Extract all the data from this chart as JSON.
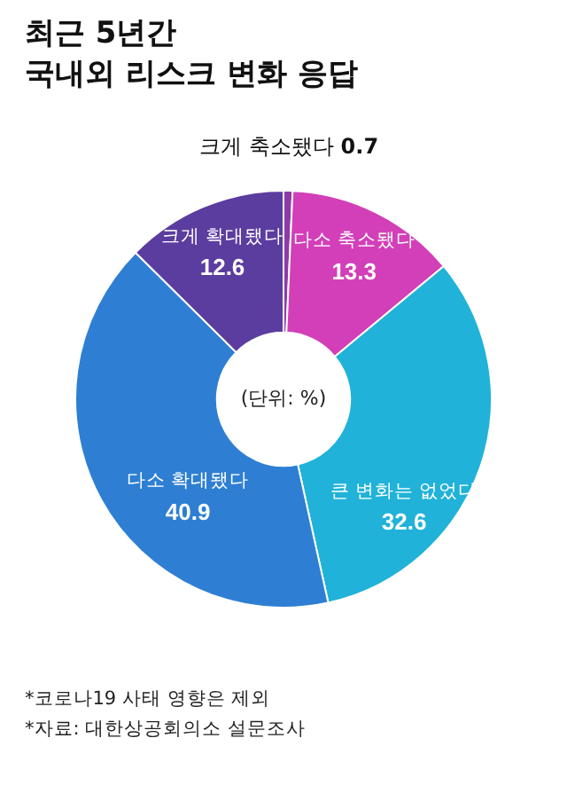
{
  "chart_data": {
    "type": "donut",
    "title": "최근 5년간\n국내외 리스크 변화 응답",
    "categories": [
      "크게 축소됐다",
      "다소 축소됐다",
      "큰 변화는 없었다",
      "다소 확대됐다",
      "크게 확대됐다"
    ],
    "values": [
      0.7,
      13.3,
      32.6,
      40.9,
      12.6
    ],
    "colors": [
      "#8e3aa6",
      "#d23fb8",
      "#20b2d8",
      "#2e7fd3",
      "#5b3c9f"
    ],
    "data_labels": true,
    "legend": false,
    "annotations": [
      "(단위: %)",
      "*코로나19 사태 영향은 제외",
      "*자료: 대한상공회의소 설문조사"
    ]
  }
}
